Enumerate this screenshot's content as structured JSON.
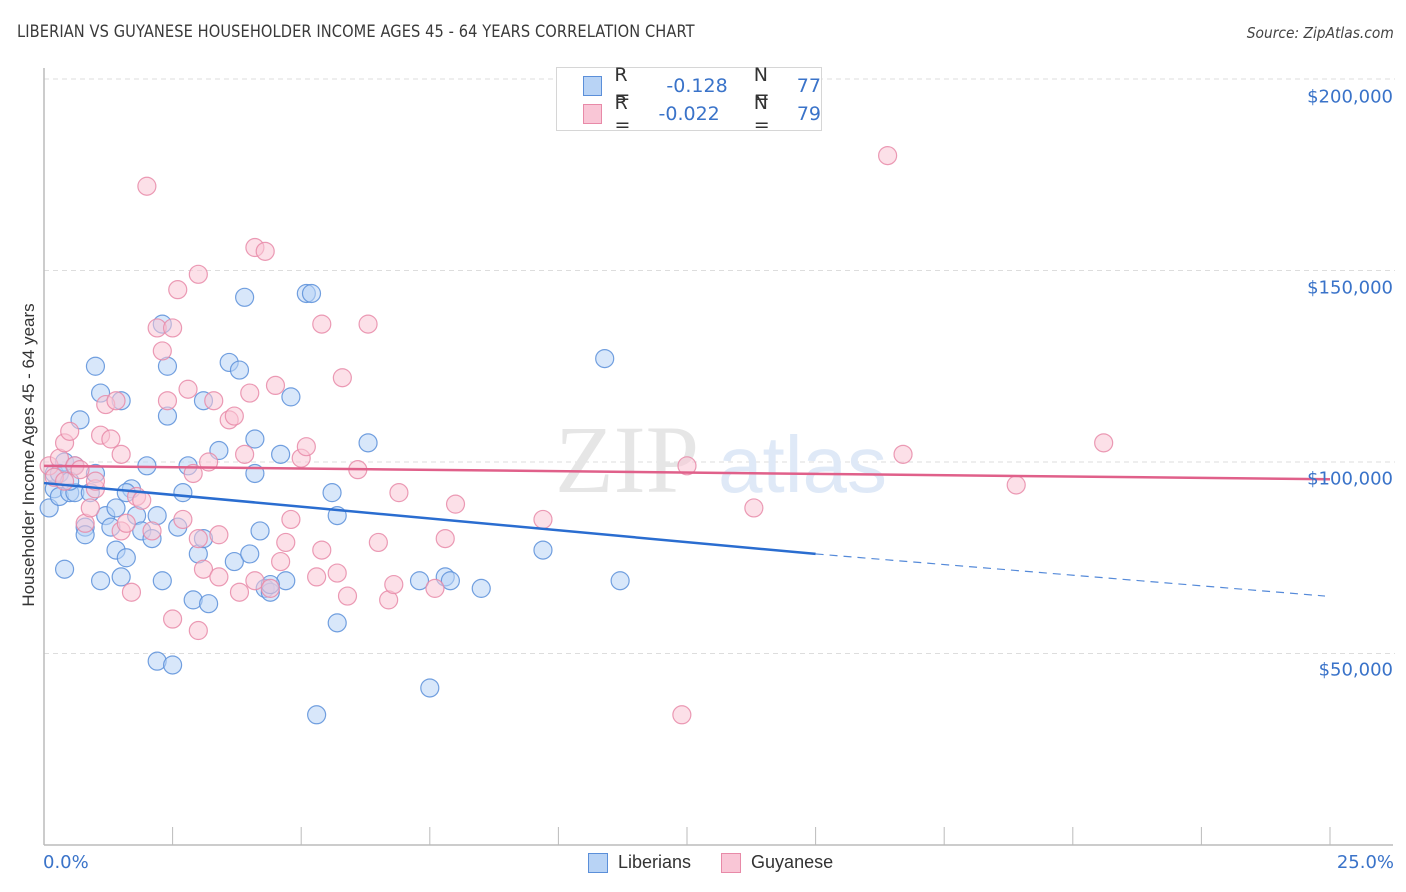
{
  "header": {
    "title": "LIBERIAN VS GUYANESE HOUSEHOLDER INCOME AGES 45 - 64 YEARS CORRELATION CHART",
    "source": "Source: ZipAtlas.com"
  },
  "watermark": {
    "zip": "ZIP",
    "atlas": "atlas"
  },
  "colors": {
    "liberians_fill": "#b8d3f5",
    "liberians_stroke": "#5b8fd9",
    "liberians_line": "#2a6dd0",
    "guyanese_fill": "#f9c6d6",
    "guyanese_stroke": "#e88aa8",
    "guyanese_line": "#e0608a",
    "axis_text": "#3a73c9",
    "grid": "#dddddd"
  },
  "legend_stats": [
    {
      "series": "Liberians",
      "r_label": "R =",
      "r_value": "-0.128",
      "n_label": "N =",
      "n_value": "77"
    },
    {
      "series": "Guyanese",
      "r_label": "R =",
      "r_value": "-0.022",
      "n_label": "N =",
      "n_value": "79"
    }
  ],
  "axes": {
    "y_label": "Householder Income Ages 45 - 64 years",
    "y_ticks": [
      "$200,000",
      "$150,000",
      "$100,000",
      "$50,000"
    ],
    "x_min_label": "0.0%",
    "x_max_label": "25.0%"
  },
  "bottom_legend": [
    {
      "label": "Liberians"
    },
    {
      "label": "Guyanese"
    }
  ],
  "chart_data": {
    "type": "scatter",
    "title": "LIBERIAN VS GUYANESE HOUSEHOLDER INCOME AGES 45 - 64 YEARS CORRELATION CHART",
    "xlabel": "",
    "ylabel": "Householder Income Ages 45 - 64 years",
    "xlim": [
      0,
      25
    ],
    "ylim": [
      0,
      205000
    ],
    "x_unit": "%",
    "y_ticks": [
      50000,
      100000,
      150000,
      200000
    ],
    "x_tick_labels": [
      "0.0%",
      "25.0%"
    ],
    "grid": true,
    "legend_position": "top-center",
    "series": [
      {
        "name": "Liberians",
        "r": -0.128,
        "n": 77,
        "trend": {
          "x": [
            0,
            15,
            25
          ],
          "y": [
            94500,
            76000,
            65000
          ],
          "solid_until_x": 15
        },
        "points": [
          [
            0.1,
            88000
          ],
          [
            0.2,
            93000
          ],
          [
            0.2,
            97000
          ],
          [
            0.3,
            91000
          ],
          [
            0.4,
            100000
          ],
          [
            0.4,
            72000
          ],
          [
            0.5,
            92000
          ],
          [
            0.6,
            92000
          ],
          [
            0.6,
            99000
          ],
          [
            0.7,
            111000
          ],
          [
            0.8,
            83000
          ],
          [
            0.8,
            81000
          ],
          [
            0.9,
            92000
          ],
          [
            1.0,
            125000
          ],
          [
            1.0,
            97000
          ],
          [
            1.1,
            118000
          ],
          [
            1.1,
            69000
          ],
          [
            1.2,
            86000
          ],
          [
            1.3,
            83000
          ],
          [
            1.4,
            88000
          ],
          [
            1.4,
            77000
          ],
          [
            1.5,
            70000
          ],
          [
            1.5,
            116000
          ],
          [
            1.6,
            75000
          ],
          [
            1.7,
            93000
          ],
          [
            1.8,
            86000
          ],
          [
            1.9,
            82000
          ],
          [
            2.0,
            99000
          ],
          [
            2.1,
            80000
          ],
          [
            2.2,
            86000
          ],
          [
            2.2,
            48000
          ],
          [
            2.3,
            136000
          ],
          [
            2.3,
            69000
          ],
          [
            2.4,
            125000
          ],
          [
            2.4,
            112000
          ],
          [
            2.5,
            47000
          ],
          [
            2.6,
            83000
          ],
          [
            2.8,
            99000
          ],
          [
            2.9,
            64000
          ],
          [
            3.0,
            76000
          ],
          [
            3.1,
            80000
          ],
          [
            3.1,
            116000
          ],
          [
            3.2,
            63000
          ],
          [
            3.4,
            103000
          ],
          [
            3.6,
            126000
          ],
          [
            3.7,
            74000
          ],
          [
            3.8,
            124000
          ],
          [
            3.9,
            143000
          ],
          [
            4.0,
            76000
          ],
          [
            4.1,
            97000
          ],
          [
            4.1,
            106000
          ],
          [
            4.2,
            82000
          ],
          [
            4.3,
            67000
          ],
          [
            4.4,
            66000
          ],
          [
            4.6,
            102000
          ],
          [
            4.7,
            69000
          ],
          [
            4.8,
            117000
          ],
          [
            5.1,
            144000
          ],
          [
            5.2,
            144000
          ],
          [
            5.6,
            92000
          ],
          [
            5.7,
            86000
          ],
          [
            5.7,
            58000
          ],
          [
            5.3,
            34000
          ],
          [
            6.3,
            105000
          ],
          [
            7.3,
            69000
          ],
          [
            7.5,
            41000
          ],
          [
            7.8,
            70000
          ],
          [
            7.9,
            69000
          ],
          [
            8.5,
            67000
          ],
          [
            9.7,
            77000
          ],
          [
            10.9,
            127000
          ],
          [
            11.2,
            69000
          ],
          [
            0.3,
            97000
          ],
          [
            0.5,
            95000
          ],
          [
            1.6,
            92000
          ],
          [
            2.7,
            92000
          ],
          [
            4.4,
            68000
          ]
        ]
      },
      {
        "name": "Guyanese",
        "r": -0.022,
        "n": 79,
        "trend": {
          "x": [
            0,
            25
          ],
          "y": [
            99000,
            95500
          ]
        },
        "points": [
          [
            0.1,
            99000
          ],
          [
            0.2,
            96000
          ],
          [
            0.3,
            101000
          ],
          [
            0.4,
            95000
          ],
          [
            0.4,
            105000
          ],
          [
            0.5,
            108000
          ],
          [
            0.6,
            99000
          ],
          [
            0.7,
            98000
          ],
          [
            0.8,
            84000
          ],
          [
            0.9,
            88000
          ],
          [
            1.0,
            93000
          ],
          [
            1.0,
            95000
          ],
          [
            1.1,
            107000
          ],
          [
            1.2,
            115000
          ],
          [
            1.3,
            106000
          ],
          [
            1.4,
            116000
          ],
          [
            1.5,
            102000
          ],
          [
            1.5,
            82000
          ],
          [
            1.6,
            84000
          ],
          [
            1.7,
            66000
          ],
          [
            1.8,
            91000
          ],
          [
            1.9,
            90000
          ],
          [
            2.0,
            172000
          ],
          [
            2.1,
            82000
          ],
          [
            2.2,
            135000
          ],
          [
            2.3,
            129000
          ],
          [
            2.4,
            116000
          ],
          [
            2.5,
            135000
          ],
          [
            2.5,
            59000
          ],
          [
            2.6,
            145000
          ],
          [
            2.7,
            85000
          ],
          [
            2.8,
            119000
          ],
          [
            2.9,
            97000
          ],
          [
            3.0,
            80000
          ],
          [
            3.0,
            56000
          ],
          [
            3.0,
            149000
          ],
          [
            3.1,
            72000
          ],
          [
            3.2,
            100000
          ],
          [
            3.3,
            116000
          ],
          [
            3.4,
            81000
          ],
          [
            3.4,
            70000
          ],
          [
            3.6,
            111000
          ],
          [
            3.7,
            112000
          ],
          [
            3.8,
            66000
          ],
          [
            3.9,
            102000
          ],
          [
            4.0,
            118000
          ],
          [
            4.1,
            69000
          ],
          [
            4.1,
            156000
          ],
          [
            4.3,
            155000
          ],
          [
            4.4,
            67000
          ],
          [
            4.5,
            120000
          ],
          [
            4.6,
            74000
          ],
          [
            4.7,
            79000
          ],
          [
            4.8,
            85000
          ],
          [
            5.0,
            101000
          ],
          [
            5.1,
            104000
          ],
          [
            5.3,
            70000
          ],
          [
            5.4,
            77000
          ],
          [
            5.4,
            136000
          ],
          [
            5.7,
            71000
          ],
          [
            5.8,
            122000
          ],
          [
            5.9,
            65000
          ],
          [
            6.1,
            98000
          ],
          [
            6.3,
            136000
          ],
          [
            6.5,
            79000
          ],
          [
            6.7,
            64000
          ],
          [
            6.8,
            68000
          ],
          [
            6.9,
            92000
          ],
          [
            7.6,
            67000
          ],
          [
            7.8,
            80000
          ],
          [
            8.0,
            89000
          ],
          [
            9.7,
            85000
          ],
          [
            12.4,
            34000
          ],
          [
            12.5,
            99000
          ],
          [
            13.8,
            88000
          ],
          [
            16.4,
            180000
          ],
          [
            16.7,
            102000
          ],
          [
            18.9,
            94000
          ],
          [
            20.6,
            105000
          ]
        ]
      }
    ]
  }
}
